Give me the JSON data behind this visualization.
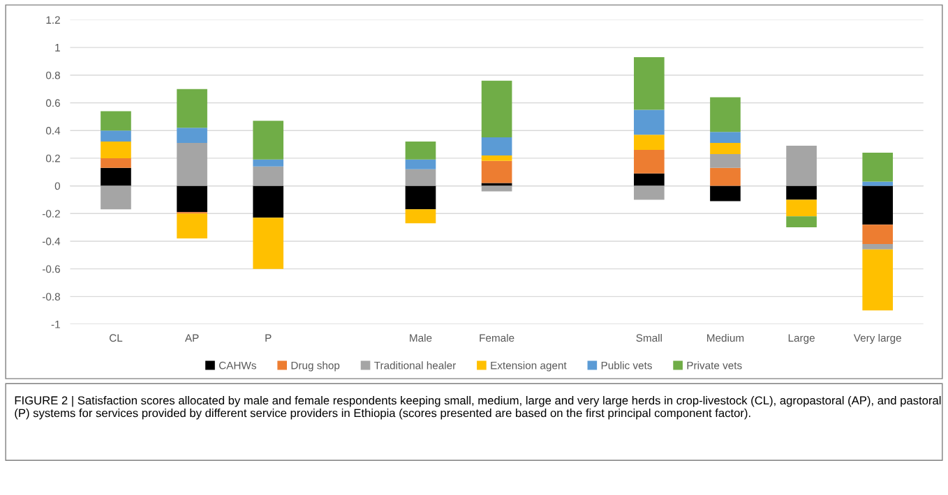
{
  "chart_data": {
    "type": "bar",
    "stacked": true,
    "categories": [
      "CL",
      "AP",
      "P",
      null,
      "Male",
      "Female",
      null,
      "Small",
      "Medium",
      "Large",
      "Very large"
    ],
    "series": [
      {
        "name": "CAHWs",
        "color": "#000000",
        "values": [
          0.13,
          -0.19,
          -0.23,
          null,
          -0.17,
          0.02,
          null,
          0.09,
          -0.11,
          -0.1,
          -0.28
        ]
      },
      {
        "name": "Drug shop",
        "color": "#ed7d31",
        "values": [
          0.07,
          -0.01,
          null,
          null,
          null,
          0.16,
          null,
          0.17,
          0.13,
          null,
          -0.14
        ]
      },
      {
        "name": "Traditional healer",
        "color": "#a5a5a5",
        "values": [
          -0.17,
          0.31,
          0.14,
          null,
          0.12,
          -0.04,
          null,
          -0.1,
          0.1,
          0.29,
          -0.04
        ]
      },
      {
        "name": "Extension agent",
        "color": "#ffc000",
        "values": [
          0.12,
          -0.18,
          -0.37,
          null,
          -0.1,
          0.04,
          null,
          0.11,
          0.08,
          -0.12,
          -0.44
        ]
      },
      {
        "name": "Public vets",
        "color": "#5b9bd5",
        "values": [
          0.08,
          0.11,
          0.05,
          null,
          0.07,
          0.13,
          null,
          0.18,
          0.08,
          null,
          0.03
        ]
      },
      {
        "name": "Private vets",
        "color": "#70ad47",
        "values": [
          0.14,
          0.28,
          0.28,
          null,
          0.13,
          0.41,
          null,
          0.38,
          0.25,
          -0.08,
          0.21
        ]
      }
    ],
    "ylim": [
      -1,
      1.2
    ],
    "yticks": [
      {
        "value": -1,
        "label": "-1"
      },
      {
        "value": -0.8,
        "label": "-0.8"
      },
      {
        "value": -0.6,
        "label": "-0.6"
      },
      {
        "value": -0.4,
        "label": "-0.4"
      },
      {
        "value": -0.2,
        "label": "-0.2"
      },
      0,
      0.2,
      0.4,
      0.6,
      0.8,
      1,
      1.2
    ],
    "grid": "y",
    "legend": "bottom",
    "annotations": [
      "FIGURE 2 | Satisfaction scores allocated by male and female respondents keeping small, medium, large and very large herds in crop-livestock (CL), agropastoral (AP), and pastoral (P) systems for services provided by different service providers in Ethiopia (scores presented are based on the first principal component factor)."
    ]
  }
}
